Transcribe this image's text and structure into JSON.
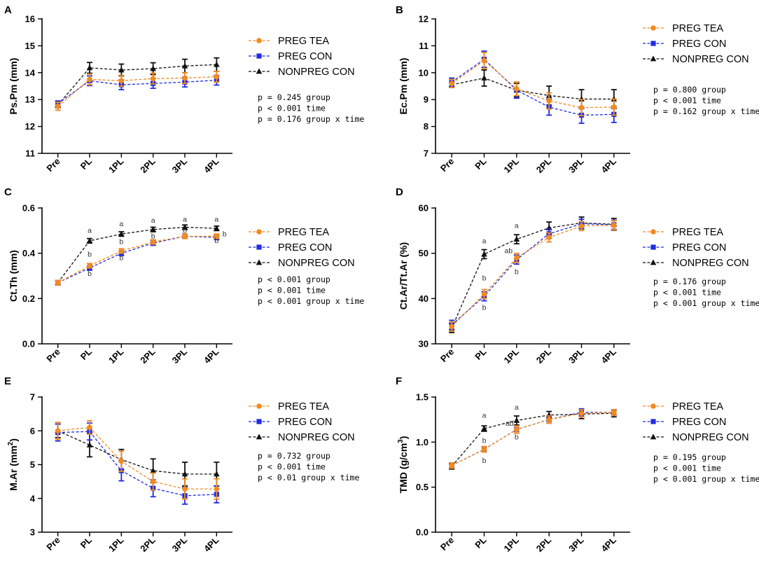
{
  "series_styles": [
    {
      "name": "PREG TEA",
      "color": "#F28A1E",
      "marker": "circle"
    },
    {
      "name": "PREG CON",
      "color": "#1F2BE0",
      "marker": "square"
    },
    {
      "name": "NONPREG CON",
      "color": "#111111",
      "marker": "triangle"
    }
  ],
  "chart_data": [
    {
      "panel": "A",
      "type": "line",
      "categories": [
        "Pre",
        "PL",
        "1PL",
        "2PL",
        "3PL",
        "4PL"
      ],
      "ylabel": "Ps.Pm (mm)",
      "ylim": [
        11,
        16
      ],
      "yticks": [
        11,
        12,
        13,
        14,
        15,
        16
      ],
      "yticklabels": [
        "11",
        "12",
        "13",
        "14",
        "15",
        "16"
      ],
      "legend": [
        "PREG TEA",
        "PREG CON",
        "NONPREG CON"
      ],
      "stats": [
        "p = 0.245 group",
        "p < 0.001 time",
        "p = 0.176 group x time"
      ],
      "series": [
        {
          "name": "PREG TEA",
          "values": [
            12.75,
            13.75,
            13.7,
            13.78,
            13.8,
            13.85
          ],
          "err": [
            0.15,
            0.2,
            0.2,
            0.2,
            0.2,
            0.2
          ]
        },
        {
          "name": "PREG CON",
          "values": [
            12.85,
            13.7,
            13.55,
            13.6,
            13.65,
            13.72
          ],
          "err": [
            0.1,
            0.18,
            0.18,
            0.18,
            0.18,
            0.18
          ]
        },
        {
          "name": "NONPREG CON",
          "values": [
            12.8,
            14.18,
            14.1,
            14.15,
            14.25,
            14.3
          ],
          "err": [
            0.1,
            0.2,
            0.22,
            0.22,
            0.25,
            0.25
          ]
        }
      ],
      "annotations": []
    },
    {
      "panel": "B",
      "type": "line",
      "categories": [
        "Pre",
        "PL",
        "1PL",
        "2PL",
        "3PL",
        "4PL"
      ],
      "ylabel": "Ec.Pm (mm)",
      "ylim": [
        7,
        12
      ],
      "yticks": [
        7,
        8,
        9,
        10,
        11,
        12
      ],
      "yticklabels": [
        "7",
        "8",
        "9",
        "10",
        "11",
        "12"
      ],
      "legend": [
        "PREG TEA",
        "PREG CON",
        "NONPREG CON"
      ],
      "stats": [
        "p = 0.800 group",
        "p < 0.001 time",
        "p = 0.162 group x time"
      ],
      "series": [
        {
          "name": "PREG TEA",
          "values": [
            9.6,
            10.45,
            9.4,
            8.95,
            8.7,
            8.72
          ],
          "err": [
            0.15,
            0.3,
            0.25,
            0.3,
            0.3,
            0.3
          ]
        },
        {
          "name": "PREG CON",
          "values": [
            9.65,
            10.5,
            9.35,
            8.72,
            8.42,
            8.45
          ],
          "err": [
            0.15,
            0.3,
            0.3,
            0.3,
            0.3,
            0.3
          ]
        },
        {
          "name": "NONPREG CON",
          "values": [
            9.55,
            9.8,
            9.35,
            9.15,
            9.02,
            9.02
          ],
          "err": [
            0.1,
            0.3,
            0.25,
            0.35,
            0.35,
            0.35
          ]
        }
      ],
      "annotations": []
    },
    {
      "panel": "C",
      "type": "line",
      "categories": [
        "Pre",
        "PL",
        "1PL",
        "2PL",
        "3PL",
        "4PL"
      ],
      "ylabel": "Ct.Th (mm)",
      "ylim": [
        0.0,
        0.6
      ],
      "yticks": [
        0.0,
        0.2,
        0.4,
        0.6
      ],
      "yticklabels": [
        "0.0",
        "0.2",
        "0.4",
        "0.6"
      ],
      "legend": [
        "PREG TEA",
        "PREG CON",
        "NONPREG CON"
      ],
      "stats": [
        "p < 0.001 group",
        "p < 0.001 time",
        "p < 0.001 group x time"
      ],
      "series": [
        {
          "name": "PREG TEA",
          "values": [
            0.27,
            0.345,
            0.41,
            0.45,
            0.475,
            0.475
          ],
          "err": [
            0.01,
            0.01,
            0.01,
            0.01,
            0.01,
            0.01
          ]
        },
        {
          "name": "PREG CON",
          "values": [
            0.27,
            0.335,
            0.4,
            0.445,
            0.475,
            0.47
          ],
          "err": [
            0.01,
            0.01,
            0.01,
            0.01,
            0.01,
            0.01
          ]
        },
        {
          "name": "NONPREG CON",
          "values": [
            0.27,
            0.455,
            0.485,
            0.505,
            0.515,
            0.51
          ],
          "err": [
            0.01,
            0.01,
            0.01,
            0.01,
            0.01,
            0.01
          ]
        }
      ],
      "annotations": [
        {
          "cat": 1,
          "text": "a",
          "y": 0.49
        },
        {
          "cat": 1,
          "text": "b",
          "y": 0.385
        },
        {
          "cat": 1,
          "text": "b",
          "y": 0.3
        },
        {
          "cat": 2,
          "text": "a",
          "y": 0.52
        },
        {
          "cat": 2,
          "text": "b",
          "y": 0.44
        },
        {
          "cat": 2,
          "text": "b",
          "y": 0.37
        },
        {
          "cat": 3,
          "text": "a",
          "y": 0.535
        },
        {
          "cat": 3,
          "text": "b",
          "y": 0.465
        },
        {
          "cat": 4,
          "text": "a",
          "y": 0.54
        },
        {
          "cat": 4,
          "text": "b",
          "y": 0.49
        },
        {
          "cat": 5,
          "text": "a",
          "y": 0.54
        },
        {
          "cat": 5,
          "text": "b",
          "y": 0.445
        },
        {
          "cat": 5,
          "text": "b",
          "dx": 0.25,
          "y": 0.475
        }
      ]
    },
    {
      "panel": "D",
      "type": "line",
      "categories": [
        "Pre",
        "PL",
        "1PL",
        "2PL",
        "3PL",
        "4PL"
      ],
      "ylabel": "Ct.Ar/Tt.Ar (%)",
      "ylim": [
        30,
        60
      ],
      "yticks": [
        30,
        40,
        50,
        60
      ],
      "yticklabels": [
        "30",
        "40",
        "50",
        "60"
      ],
      "legend": [
        "PREG TEA",
        "PREG CON",
        "NONPREG CON"
      ],
      "stats": [
        "p = 0.176 group",
        "p < 0.001 time",
        "p < 0.001 group x time"
      ],
      "series": [
        {
          "name": "PREG TEA",
          "values": [
            33.8,
            41.0,
            49.0,
            53.5,
            56.0,
            56.2
          ],
          "err": [
            1.0,
            1.0,
            1.0,
            1.0,
            1.0,
            1.0
          ]
        },
        {
          "name": "PREG CON",
          "values": [
            34.2,
            40.5,
            48.6,
            54.3,
            56.5,
            56.3
          ],
          "err": [
            1.0,
            1.0,
            1.0,
            1.0,
            1.0,
            1.0
          ]
        },
        {
          "name": "NONPREG CON",
          "values": [
            33.5,
            49.8,
            53.1,
            55.6,
            56.7,
            56.4
          ],
          "err": [
            1.0,
            1.0,
            1.0,
            1.3,
            1.3,
            1.3
          ]
        }
      ],
      "annotations": [
        {
          "cat": 1,
          "text": "a",
          "y": 52.2
        },
        {
          "cat": 1,
          "text": "b",
          "y": 44.0
        },
        {
          "cat": 1,
          "text": "b",
          "y": 37.5
        },
        {
          "cat": 2,
          "text": "a",
          "y": 55.6
        },
        {
          "cat": 2,
          "text": "ab",
          "dx": -0.25,
          "y": 50.0
        },
        {
          "cat": 2,
          "text": "b",
          "y": 45.4
        }
      ]
    },
    {
      "panel": "E",
      "type": "line",
      "categories": [
        "Pre",
        "PL",
        "1PL",
        "2PL",
        "3PL",
        "4PL"
      ],
      "ylabel": "M.Ar (mm",
      "ylabel_sup": "2",
      "ylabel_end": ")",
      "ylim": [
        3,
        7
      ],
      "yticks": [
        3,
        4,
        5,
        6,
        7
      ],
      "yticklabels": [
        "3",
        "4",
        "5",
        "6",
        "7"
      ],
      "legend": [
        "PREG TEA",
        "PREG CON",
        "NONPREG CON"
      ],
      "stats": [
        "p = 0.732 group",
        "p < 0.001 time",
        "p < 0.01 group x time"
      ],
      "series": [
        {
          "name": "PREG TEA",
          "values": [
            6.0,
            6.1,
            5.1,
            4.5,
            4.28,
            4.28
          ],
          "err": [
            0.25,
            0.2,
            0.3,
            0.25,
            0.3,
            0.3
          ]
        },
        {
          "name": "PREG CON",
          "values": [
            5.95,
            5.98,
            4.82,
            4.3,
            4.08,
            4.12
          ],
          "err": [
            0.25,
            0.25,
            0.3,
            0.25,
            0.25,
            0.25
          ]
        },
        {
          "name": "NONPREG CON",
          "values": [
            6.0,
            5.58,
            5.15,
            4.82,
            4.72,
            4.72
          ],
          "err": [
            0.2,
            0.35,
            0.3,
            0.35,
            0.35,
            0.35
          ]
        }
      ],
      "annotations": []
    },
    {
      "panel": "F",
      "type": "line",
      "categories": [
        "Pre",
        "PL",
        "1PL",
        "2PL",
        "3PL",
        "4PL"
      ],
      "ylabel": "TMD (g/cm",
      "ylabel_sup": "3",
      "ylabel_end": ")",
      "ylim": [
        0.0,
        1.5
      ],
      "yticks": [
        0.0,
        0.5,
        1.0,
        1.5
      ],
      "yticklabels": [
        "0.0",
        "0.5",
        "1.0",
        "1.5"
      ],
      "legend": [
        "PREG TEA",
        "PREG CON",
        "NONPREG CON"
      ],
      "stats": [
        "p = 0.195 group",
        "p < 0.001 time",
        "p < 0.001 group x time"
      ],
      "series": [
        {
          "name": "PREG TEA",
          "values": [
            0.74,
            0.92,
            1.14,
            1.25,
            1.32,
            1.33
          ],
          "err": [
            0.03,
            0.03,
            0.04,
            0.04,
            0.04,
            0.03
          ]
        },
        {
          "name": "PREG CON",
          "values": [
            0.74,
            0.92,
            1.14,
            1.25,
            1.33,
            1.33
          ],
          "err": [
            0.03,
            0.03,
            0.04,
            0.04,
            0.04,
            0.03
          ]
        },
        {
          "name": "NONPREG CON",
          "values": [
            0.73,
            1.15,
            1.24,
            1.3,
            1.31,
            1.32
          ],
          "err": [
            0.03,
            0.03,
            0.05,
            0.04,
            0.05,
            0.04
          ]
        }
      ],
      "annotations": [
        {
          "cat": 1,
          "text": "a",
          "y": 1.27
        },
        {
          "cat": 1,
          "text": "b",
          "y": 0.99
        },
        {
          "cat": 1,
          "text": "b",
          "y": 0.77
        },
        {
          "cat": 2,
          "text": "a",
          "y": 1.36
        },
        {
          "cat": 2,
          "text": "ab",
          "dx": -0.22,
          "y": 1.18
        },
        {
          "cat": 2,
          "text": "b",
          "y": 1.03
        }
      ]
    }
  ]
}
